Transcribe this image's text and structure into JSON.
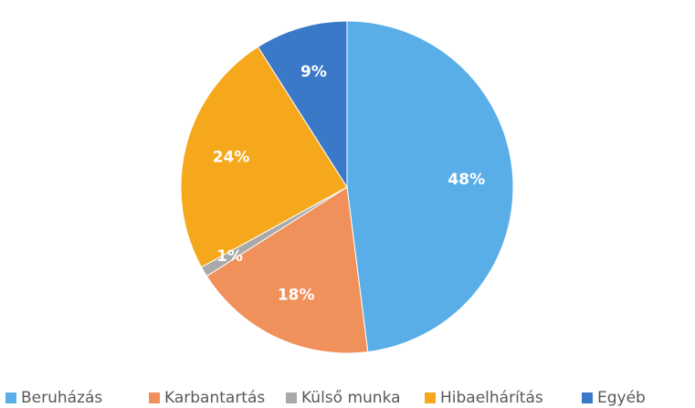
{
  "chart_data": {
    "type": "pie",
    "categories": [
      "Beruházás",
      "Karbantartás",
      "Külső munka",
      "Hibaelhárítás",
      "Egyéb"
    ],
    "values": [
      48,
      18,
      1,
      24,
      9
    ],
    "value_labels": [
      "48%",
      "18%",
      "1%",
      "24%",
      "9%"
    ],
    "colors": [
      "#5aaee8",
      "#f0905a",
      "#a9a9a9",
      "#f5a81c",
      "#3a78c8"
    ],
    "legend": "bottom"
  }
}
